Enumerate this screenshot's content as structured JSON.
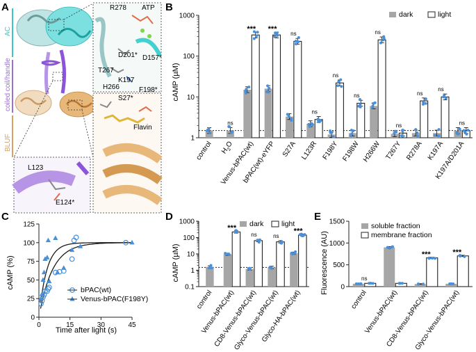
{
  "panels": {
    "A": {
      "label": "A",
      "domain_labels": [
        "AC",
        "coiled coil/handle",
        "BLUF"
      ],
      "residue_labels": [
        "R278",
        "ATP",
        "D201*",
        "D157*",
        "T267",
        "K197",
        "H266",
        "F198*",
        "L123",
        "E124*",
        "S27*",
        "Flavin"
      ]
    },
    "B": {
      "label": "B"
    },
    "C": {
      "label": "C"
    },
    "D": {
      "label": "D"
    },
    "E": {
      "label": "E"
    }
  },
  "chart_data": [
    {
      "panel": "B",
      "type": "bar",
      "ylabel": "cAMP (µM)",
      "yscale": "log",
      "ylim": [
        1,
        1000
      ],
      "yticks": [
        "1",
        "10",
        "100",
        "1000"
      ],
      "categories": [
        "control",
        "H2O",
        "Venus-bPAC(wt)",
        "bPAC(wt)-eYFP",
        "S27A",
        "L123R",
        "F198Y",
        "F198W",
        "H266W",
        "T267Y",
        "R278A",
        "K197A",
        "K197A/D201A"
      ],
      "series": [
        {
          "name": "dark",
          "values": [
            1.5,
            1.5,
            15,
            16,
            3.3,
            2.2,
            1.2,
            1.3,
            6,
            1.25,
            1.3,
            1.3,
            1.5
          ]
        },
        {
          "name": "light",
          "values": [
            null,
            null,
            330,
            330,
            230,
            2.8,
            22,
            7,
            250,
            1.3,
            8,
            10,
            1.5
          ]
        }
      ],
      "annotations": [
        "",
        "ns",
        "***",
        "***",
        "ns",
        "ns",
        "ns",
        "ns",
        "ns",
        "ns",
        "ns",
        "ns",
        "ns"
      ],
      "reference_line": 1.5,
      "legend": [
        "dark",
        "light"
      ],
      "legend_position": "top-right"
    },
    {
      "panel": "C",
      "type": "scatter",
      "xlabel": "Time after light (s)",
      "ylabel": "cAMP (%)",
      "xlim": [
        0,
        45
      ],
      "ylim": [
        0,
        125
      ],
      "xticks": [
        "0",
        "15",
        "30",
        "45"
      ],
      "yticks": [
        "0",
        "25",
        "50",
        "75",
        "100",
        "125"
      ],
      "series": [
        {
          "name": "bPAC(wt)",
          "marker": "circle",
          "x": [
            1,
            1.5,
            2,
            2.5,
            3,
            4,
            4.5,
            5,
            8,
            10,
            12,
            16,
            17,
            18,
            42
          ],
          "y": [
            18,
            22,
            27,
            30,
            35,
            35,
            38,
            40,
            60,
            61,
            62,
            78,
            103,
            107,
            100
          ]
        },
        {
          "name": "Venus-bPAC(F198Y)",
          "marker": "triangle",
          "x": [
            1,
            1.5,
            2,
            2.5,
            3,
            4,
            4.5,
            5,
            8,
            9,
            12,
            16,
            20,
            45
          ],
          "y": [
            25,
            31,
            50,
            60,
            78,
            80,
            103,
            48,
            106,
            60,
            66,
            90,
            95,
            100
          ]
        }
      ],
      "legend": [
        "bPAC(wt)",
        "Venus-bPAC(F198Y)"
      ],
      "legend_position": "bottom-right"
    },
    {
      "panel": "D",
      "type": "bar",
      "ylabel": "cAMP (µM)",
      "yscale": "log",
      "ylim": [
        0.1,
        1000
      ],
      "yticks": [
        "0.1",
        "1",
        "10",
        "100",
        "1000"
      ],
      "categories": [
        "control",
        "Venus-bPAC(wt)",
        "CD8-Venus-bPAC(wt)",
        "Glyco-Venus-bPAC(wt)",
        "Glyco-HA-bPAC(wt)"
      ],
      "series": [
        {
          "name": "dark",
          "values": [
            1.6,
            9.5,
            1.2,
            1.5,
            11
          ]
        },
        {
          "name": "light",
          "values": [
            null,
            220,
            65,
            55,
            140
          ]
        }
      ],
      "annotations": [
        "",
        "***",
        "ns",
        "ns",
        "***"
      ],
      "reference_line": 1.5,
      "legend": [
        "dark",
        "light"
      ],
      "legend_position": "top-right"
    },
    {
      "panel": "E",
      "type": "bar",
      "ylabel": "Fluorescence (AU)",
      "ylim": [
        0,
        1500
      ],
      "yticks": [
        "0",
        "500",
        "1000",
        "1500"
      ],
      "categories": [
        "control",
        "Venus-bPAC(wt)",
        "CD8-Venus-bPAC(wt)",
        "Glyco-Venus-bPAC(wt)"
      ],
      "series": [
        {
          "name": "soluble fraction",
          "values": [
            65,
            900,
            60,
            65
          ]
        },
        {
          "name": "membrane fraction",
          "values": [
            75,
            75,
            660,
            705
          ]
        }
      ],
      "annotations": [
        "ns",
        "",
        "***",
        "***"
      ],
      "legend": [
        "soluble fraction",
        "membrane fraction"
      ],
      "legend_position": "top-right"
    }
  ],
  "colors": {
    "dark_bar": "#a6a6a6",
    "light_bar": "#ffffff",
    "points": "#4a90d9",
    "fit_line": "#1a1a1a",
    "ac_domain": "#36c8c8",
    "coiled_coil": "#9b6fd6",
    "bluf_domain": "#d9a15c"
  }
}
